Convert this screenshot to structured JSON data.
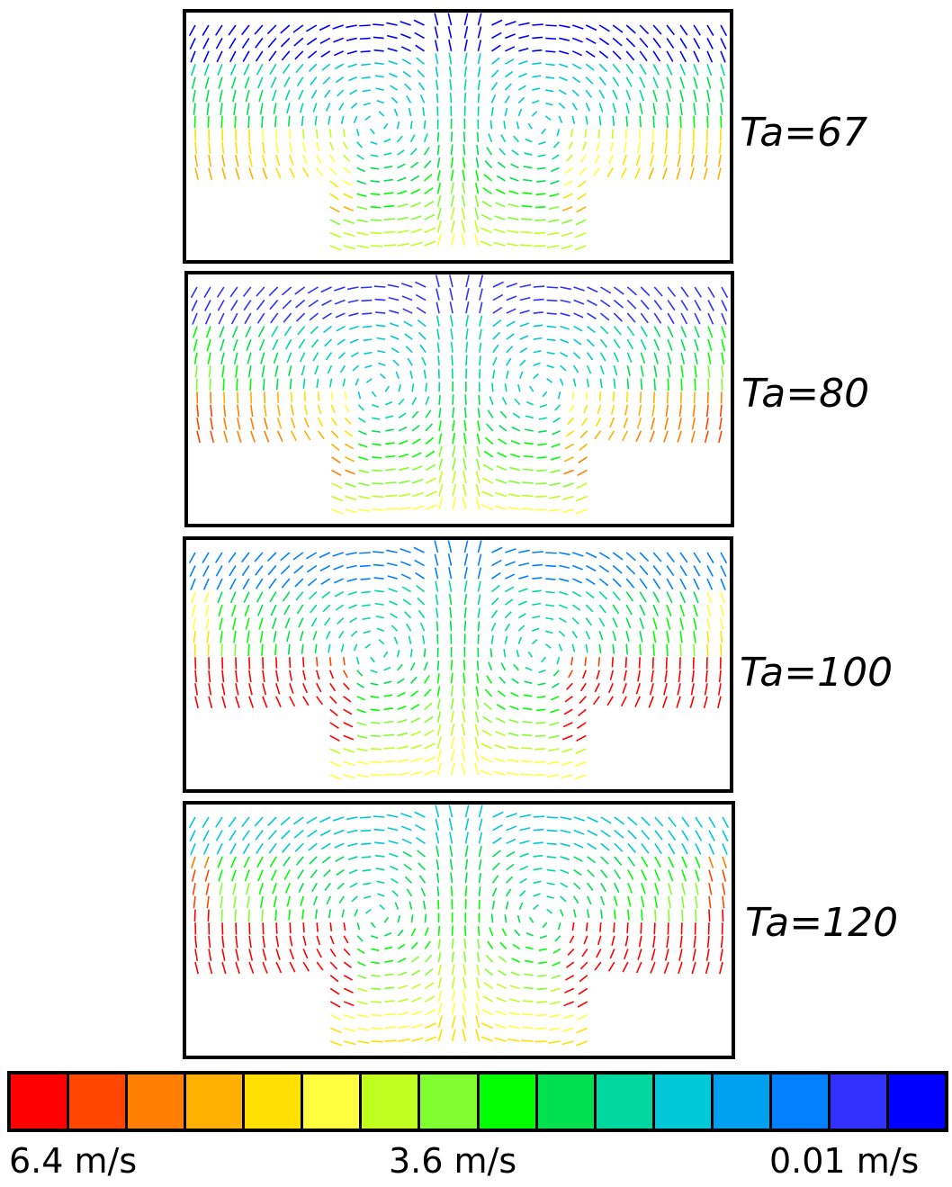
{
  "panels": [
    {
      "label": "Ta=67",
      "intensity": 0.0
    },
    {
      "label": "Ta=80",
      "intensity": 0.15
    },
    {
      "label": "Ta=100",
      "intensity": 0.55
    },
    {
      "label": "Ta=120",
      "intensity": 1.0
    }
  ],
  "colorbar": {
    "colors": [
      "#ff0000",
      "#ff4500",
      "#ff8000",
      "#ffb000",
      "#ffe000",
      "#ffff40",
      "#c0ff20",
      "#80ff30",
      "#00ff00",
      "#00e050",
      "#00d8a0",
      "#00c8d8",
      "#00a0f0",
      "#0080ff",
      "#3030ff",
      "#0000ff"
    ],
    "labels": {
      "max": "6.4 m/s",
      "mid": "3.6 m/s",
      "min": "0.01 m/s"
    }
  }
}
